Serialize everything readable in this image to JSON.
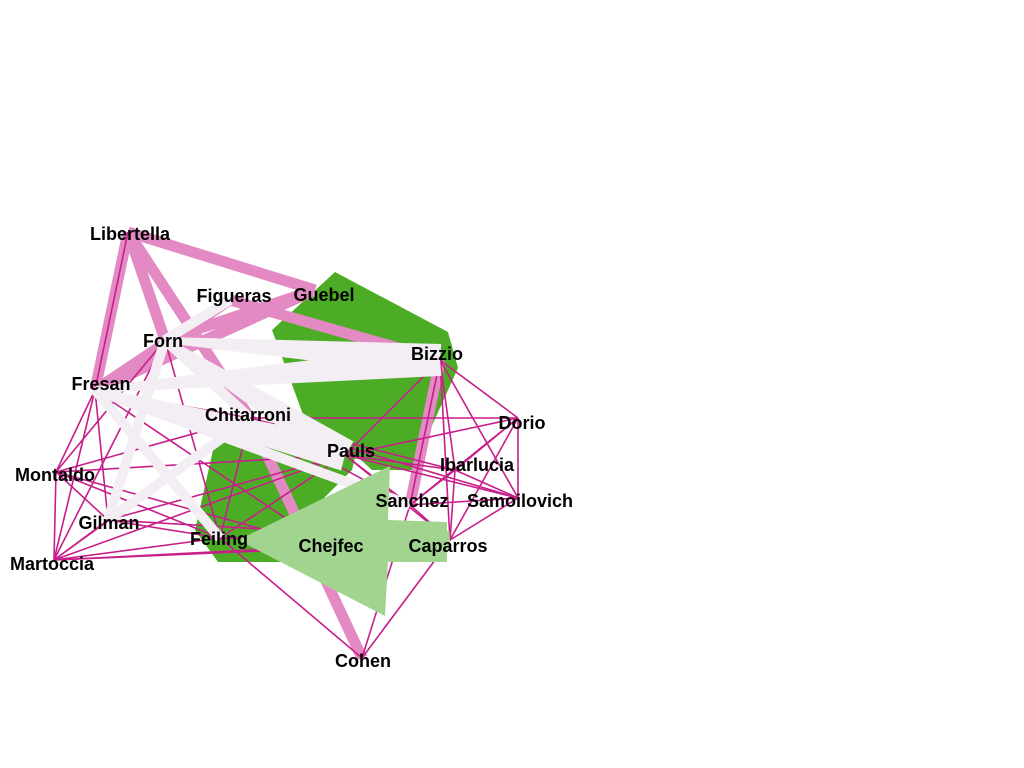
{
  "colors": {
    "background": "#ffffff",
    "thin_edge": "#c81e8a",
    "thick_pink": "#e389c3",
    "pale": "#f3eef3",
    "green_dark": "#4dac26",
    "green_light": "#a1d58f"
  },
  "nodes": [
    {
      "id": "Libertella",
      "label": "Libertella"
    },
    {
      "id": "Figueras",
      "label": "Figueras"
    },
    {
      "id": "Guebel",
      "label": "Guebel"
    },
    {
      "id": "Forn",
      "label": "Forn"
    },
    {
      "id": "Bizzio",
      "label": "Bizzio"
    },
    {
      "id": "Fresan",
      "label": "Fresan"
    },
    {
      "id": "Chitarroni",
      "label": "Chitarroni"
    },
    {
      "id": "Dorio",
      "label": "Dorio"
    },
    {
      "id": "Pauls",
      "label": "Pauls"
    },
    {
      "id": "Ibarlucia",
      "label": "Ibarlucia"
    },
    {
      "id": "Montaldo",
      "label": "Montaldo"
    },
    {
      "id": "Sanchez",
      "label": "Sanchez"
    },
    {
      "id": "Samoilovich",
      "label": "Samoilovich"
    },
    {
      "id": "Gilman",
      "label": "Gilman"
    },
    {
      "id": "Feiling",
      "label": "Feiling"
    },
    {
      "id": "Chejfec",
      "label": "Chejfec"
    },
    {
      "id": "Caparros",
      "label": "Caparros"
    },
    {
      "id": "Martoccia",
      "label": "Martoccia"
    },
    {
      "id": "Cohen",
      "label": "Cohen"
    }
  ],
  "edges": [
    {
      "a": "Montaldo",
      "b": "Gilman",
      "kind": "thin"
    },
    {
      "a": "Montaldo",
      "b": "Martoccia",
      "kind": "thin"
    },
    {
      "a": "Montaldo",
      "b": "Fresan",
      "kind": "thin"
    },
    {
      "a": "Montaldo",
      "b": "Feiling",
      "kind": "thin"
    },
    {
      "a": "Montaldo",
      "b": "Chitarroni",
      "kind": "thin"
    },
    {
      "a": "Montaldo",
      "b": "Pauls",
      "kind": "thin"
    },
    {
      "a": "Montaldo",
      "b": "Forn",
      "kind": "thin"
    },
    {
      "a": "Montaldo",
      "b": "Chejfec",
      "kind": "thin"
    },
    {
      "a": "Gilman",
      "b": "Martoccia",
      "kind": "thin"
    },
    {
      "a": "Gilman",
      "b": "Fresan",
      "kind": "thin"
    },
    {
      "a": "Gilman",
      "b": "Feiling",
      "kind": "thin"
    },
    {
      "a": "Gilman",
      "b": "Chitarroni",
      "kind": "thin"
    },
    {
      "a": "Gilman",
      "b": "Pauls",
      "kind": "thin"
    },
    {
      "a": "Gilman",
      "b": "Forn",
      "kind": "thin"
    },
    {
      "a": "Gilman",
      "b": "Caparros",
      "kind": "thin"
    },
    {
      "a": "Martoccia",
      "b": "Fresan",
      "kind": "thin"
    },
    {
      "a": "Martoccia",
      "b": "Feiling",
      "kind": "thin"
    },
    {
      "a": "Martoccia",
      "b": "Chitarroni",
      "kind": "thin"
    },
    {
      "a": "Martoccia",
      "b": "Pauls",
      "kind": "thin"
    },
    {
      "a": "Martoccia",
      "b": "Caparros",
      "kind": "thin"
    },
    {
      "a": "Martoccia",
      "b": "Forn",
      "kind": "thin"
    },
    {
      "a": "Martoccia",
      "b": "Chejfec",
      "kind": "thin"
    },
    {
      "a": "Fresan",
      "b": "Feiling",
      "kind": "thin"
    },
    {
      "a": "Fresan",
      "b": "Chitarroni",
      "kind": "thin"
    },
    {
      "a": "Fresan",
      "b": "Pauls",
      "kind": "thin"
    },
    {
      "a": "Fresan",
      "b": "Chejfec",
      "kind": "thin"
    },
    {
      "a": "Feiling",
      "b": "Pauls",
      "kind": "thin"
    },
    {
      "a": "Feiling",
      "b": "Chitarroni",
      "kind": "thin"
    },
    {
      "a": "Feiling",
      "b": "Caparros",
      "kind": "thin"
    },
    {
      "a": "Feiling",
      "b": "Forn",
      "kind": "thin"
    },
    {
      "a": "Chitarroni",
      "b": "Pauls",
      "kind": "thin"
    },
    {
      "a": "Chitarroni",
      "b": "Ibarlucia",
      "kind": "thin"
    },
    {
      "a": "Chitarroni",
      "b": "Sanchez",
      "kind": "thin"
    },
    {
      "a": "Pauls",
      "b": "Dorio",
      "kind": "thin"
    },
    {
      "a": "Pauls",
      "b": "Samoilovich",
      "kind": "thin"
    },
    {
      "a": "Pauls",
      "b": "Ibarlucia",
      "kind": "thin"
    },
    {
      "a": "Pauls",
      "b": "Sanchez",
      "kind": "thin"
    },
    {
      "a": "Pauls",
      "b": "Caparros",
      "kind": "thin"
    },
    {
      "a": "Pauls",
      "b": "Bizzio",
      "kind": "thin"
    },
    {
      "a": "Bizzio",
      "b": "Dorio",
      "kind": "thin"
    },
    {
      "a": "Bizzio",
      "b": "Samoilovich",
      "kind": "thin"
    },
    {
      "a": "Bizzio",
      "b": "Ibarlucia",
      "kind": "thin"
    },
    {
      "a": "Bizzio",
      "b": "Sanchez",
      "kind": "thin"
    },
    {
      "a": "Bizzio",
      "b": "Caparros",
      "kind": "thin"
    },
    {
      "a": "Dorio",
      "b": "Samoilovich",
      "kind": "thin"
    },
    {
      "a": "Dorio",
      "b": "Ibarlucia",
      "kind": "thin"
    },
    {
      "a": "Dorio",
      "b": "Sanchez",
      "kind": "thin"
    },
    {
      "a": "Dorio",
      "b": "Caparros",
      "kind": "thin"
    },
    {
      "a": "Dorio",
      "b": "Chitarroni",
      "kind": "thin"
    },
    {
      "a": "Samoilovich",
      "b": "Ibarlucia",
      "kind": "thin"
    },
    {
      "a": "Samoilovich",
      "b": "Sanchez",
      "kind": "thin"
    },
    {
      "a": "Samoilovich",
      "b": "Caparros",
      "kind": "thin"
    },
    {
      "a": "Samoilovich",
      "b": "Chitarroni",
      "kind": "thin"
    },
    {
      "a": "Ibarlucia",
      "b": "Sanchez",
      "kind": "thin"
    },
    {
      "a": "Ibarlucia",
      "b": "Caparros",
      "kind": "thin"
    },
    {
      "a": "Sanchez",
      "b": "Caparros",
      "kind": "thin"
    },
    {
      "a": "Caparros",
      "b": "Cohen",
      "kind": "thin"
    },
    {
      "a": "Caparros",
      "b": "Chejfec",
      "kind": "thin"
    },
    {
      "a": "Caparros",
      "b": "Feiling",
      "kind": "thin"
    },
    {
      "a": "Cohen",
      "b": "Feiling",
      "kind": "thin"
    },
    {
      "a": "Cohen",
      "b": "Sanchez",
      "kind": "thin"
    },
    {
      "a": "Fresan",
      "b": "Libertella",
      "kind": "thin"
    },
    {
      "a": "Libertella",
      "b": "Guebel",
      "kind": "pink"
    },
    {
      "a": "Libertella",
      "b": "Fresan",
      "kind": "pink"
    },
    {
      "a": "Libertella",
      "b": "Forn",
      "kind": "pink"
    },
    {
      "a": "Libertella",
      "b": "Chitarroni",
      "kind": "pink"
    },
    {
      "a": "Figueras",
      "b": "Fresan",
      "kind": "pink"
    },
    {
      "a": "Figueras",
      "b": "Bizzio",
      "kind": "pink"
    },
    {
      "a": "Forn",
      "b": "Guebel",
      "kind": "pink"
    },
    {
      "a": "Forn",
      "b": "Bizzio",
      "kind": "pink"
    },
    {
      "a": "Bizzio",
      "b": "Sanchez",
      "kind": "pink"
    },
    {
      "a": "Chitarroni",
      "b": "Cohen",
      "kind": "pink"
    },
    {
      "a": "Guebel",
      "b": "Fresan",
      "kind": "pink"
    },
    {
      "a": "Forn",
      "b": "Gilman",
      "kind": "pale"
    },
    {
      "a": "Fresan",
      "b": "Feiling",
      "kind": "pale"
    },
    {
      "a": "Chitarroni",
      "b": "Gilman",
      "kind": "pale"
    },
    {
      "a": "Forn",
      "b": "Chitarroni",
      "kind": "pale"
    },
    {
      "a": "Fresan",
      "b": "Sanchez",
      "kind": "pale"
    },
    {
      "a": "Forn",
      "b": "Figueras",
      "kind": "pale"
    },
    {
      "a": "Chejfec",
      "b": "Caparros",
      "kind": "lightgreen"
    }
  ],
  "wedges": [
    {
      "from": "Forn",
      "to": "Bizzio",
      "kind": "pale"
    },
    {
      "from": "Fresan",
      "to": "Bizzio",
      "kind": "pale"
    },
    {
      "from": "Fresan",
      "to": "Pauls",
      "kind": "pale"
    },
    {
      "from": "Forn",
      "to": "Pauls",
      "kind": "pale"
    }
  ],
  "polygons": [
    {
      "name": "green-region-upper",
      "kind": "green"
    },
    {
      "name": "green-region-lower",
      "kind": "green"
    },
    {
      "name": "lightgreen-arrow",
      "kind": "lightgreen"
    }
  ]
}
